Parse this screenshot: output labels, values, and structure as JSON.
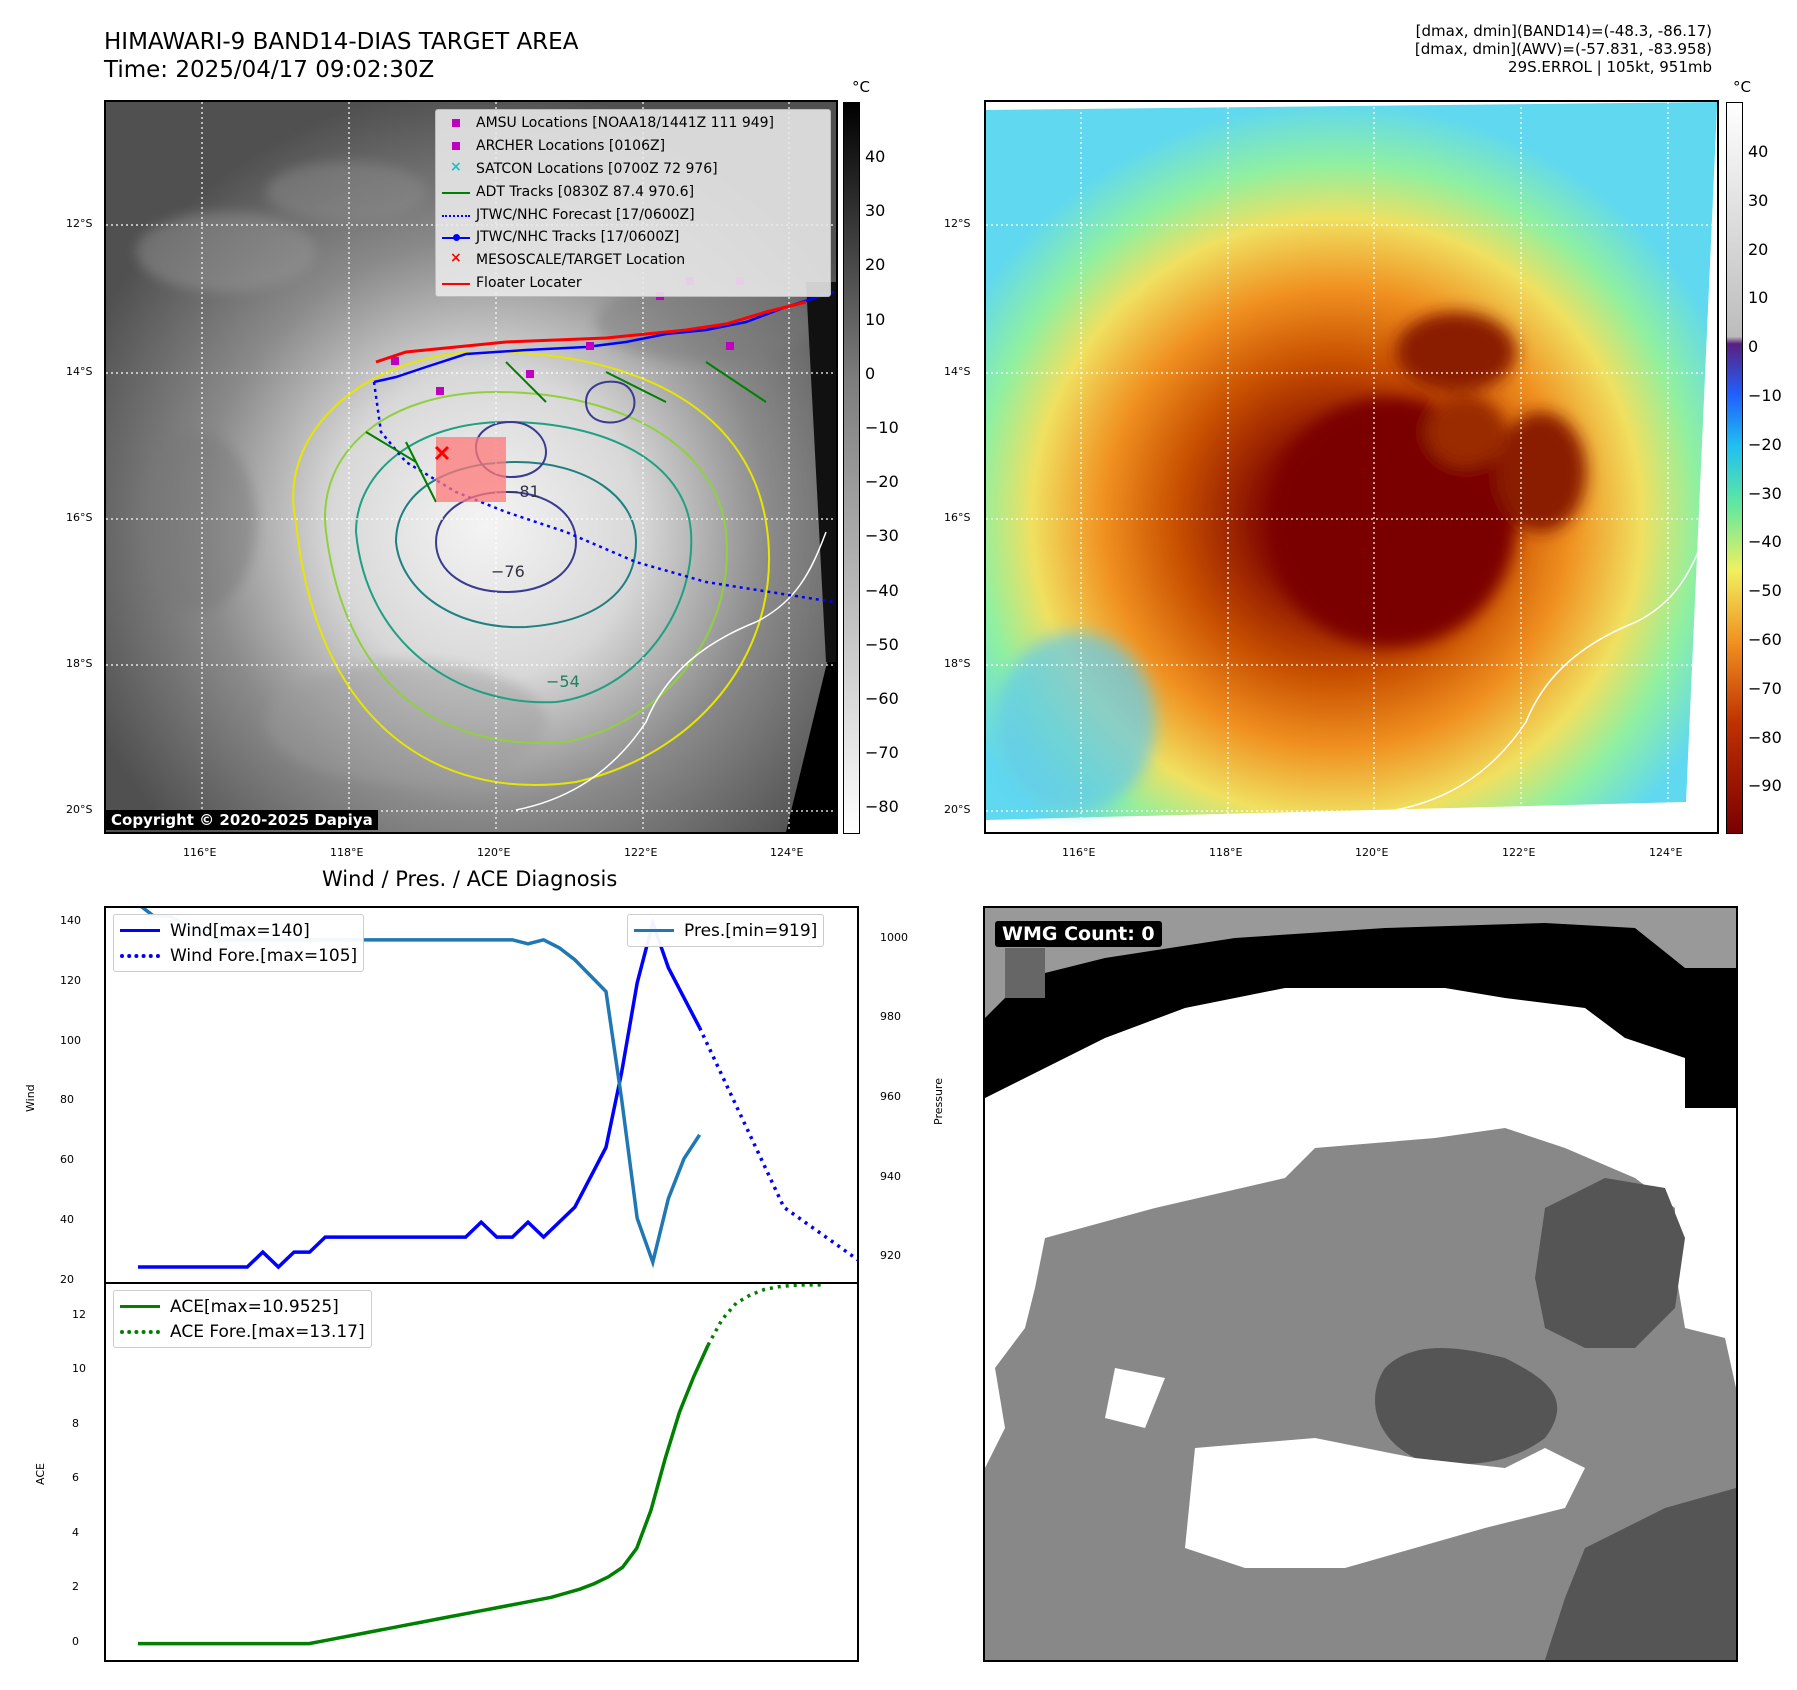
{
  "header": {
    "title_line1": "HIMAWARI-9 BAND14-DIAS TARGET AREA",
    "title_line2": "Time: 2025/04/17 09:02:30Z",
    "info_line1": "[dmax, dmin](BAND14)=(-48.3, -86.17)",
    "info_line2": "[dmax, dmin](AWV)=(-57.831, -83.958)",
    "info_line3": "29S.ERROL | 105kt, 951mb"
  },
  "map": {
    "lat_labels": [
      "12°S",
      "14°S",
      "16°S",
      "18°S",
      "20°S"
    ],
    "lon_labels": [
      "116°E",
      "118°E",
      "120°E",
      "122°E",
      "124°E"
    ],
    "contour_labels": [
      "−76",
      "−54",
      "−81"
    ],
    "copyright": "Copyright © 2020-2025 Dapiya",
    "colorbar_unit": "°C",
    "gray_ticks": [
      "40",
      "30",
      "20",
      "10",
      "0",
      "−10",
      "−20",
      "−30",
      "−40",
      "−50",
      "−60",
      "−70",
      "−80"
    ],
    "color_ticks": [
      "40",
      "30",
      "20",
      "10",
      "0",
      "−10",
      "−20",
      "−30",
      "−40",
      "−50",
      "−60",
      "−70",
      "−80",
      "−90"
    ]
  },
  "legend": {
    "items": [
      {
        "label": "AMSU Locations [NOAA18/1441Z 111 949]",
        "color": "#c000c0",
        "symbol": "square"
      },
      {
        "label": "ARCHER Locations [0106Z]",
        "color": "#c000c0",
        "symbol": "square"
      },
      {
        "label": "SATCON Locations [0700Z 72 976]",
        "color": "#20c0c0",
        "symbol": "x"
      },
      {
        "label": "ADT Tracks [0830Z 87.4 970.6]",
        "color": "#008000",
        "symbol": "line"
      },
      {
        "label": "JTWC/NHC Forecast [17/0600Z]",
        "color": "#0000ff",
        "symbol": "dotted"
      },
      {
        "label": "JTWC/NHC Tracks [17/0600Z]",
        "color": "#0000ff",
        "symbol": "line-dot"
      },
      {
        "label": "MESOSCALE/TARGET Location",
        "color": "#ff0000",
        "symbol": "x"
      },
      {
        "label": "Floater Locater",
        "color": "#ff0000",
        "symbol": "line"
      }
    ]
  },
  "diagnosis": {
    "title": "Wind / Pres. / ACE Diagnosis",
    "wind_ylabel": "Wind",
    "pres_ylabel": "Pressure",
    "ace_ylabel": "ACE",
    "wind_legend": "Wind[max=140]",
    "wind_fore_legend": "Wind Fore.[max=105]",
    "pres_legend": "Pres.[min=919]",
    "ace_legend": "ACE[max=10.9525]",
    "ace_fore_legend": "ACE Fore.[max=13.17]"
  },
  "wmg": {
    "label": "WMG Count: 0"
  },
  "chart_data": [
    {
      "type": "line",
      "name": "Wind / Pres. / ACE Diagnosis (upper)",
      "ylim_left": [
        20,
        145
      ],
      "ylim_right": [
        914,
        1008
      ],
      "yticks_left": [
        "20",
        "40",
        "60",
        "80",
        "100",
        "120",
        "140"
      ],
      "yticks_right": [
        "920",
        "940",
        "960",
        "980",
        "1000"
      ],
      "series": [
        {
          "name": "Wind[max=140]",
          "axis": "left",
          "color": "#0000ff",
          "style": "solid",
          "values": [
            25,
            25,
            25,
            25,
            25,
            25,
            25,
            25,
            30,
            25,
            30,
            30,
            35,
            35,
            35,
            35,
            35,
            35,
            35,
            35,
            35,
            35,
            40,
            35,
            35,
            40,
            35,
            40,
            45,
            55,
            65,
            90,
            120,
            140,
            125,
            115,
            105
          ]
        },
        {
          "name": "Wind Fore.[max=105]",
          "axis": "left",
          "color": "#0000ff",
          "style": "dotted",
          "values": [
            105,
            90,
            75,
            60,
            45,
            40,
            35,
            30,
            25,
            20
          ]
        },
        {
          "name": "Pres.[min=919]",
          "axis": "right",
          "color": "#1f77b4",
          "style": "solid",
          "values": [
            1009,
            1006,
            1006,
            1004,
            1002,
            1000,
            1000,
            1000,
            1000,
            1000,
            1000,
            1000,
            1000,
            1000,
            1000,
            1000,
            1000,
            1000,
            1000,
            1000,
            1000,
            1000,
            1000,
            1000,
            1000,
            999,
            1000,
            998,
            995,
            991,
            987,
            960,
            930,
            919,
            935,
            945,
            951
          ]
        }
      ]
    },
    {
      "type": "line",
      "name": "ACE (lower)",
      "ylim": [
        -0.6,
        13.2
      ],
      "yticks": [
        "0",
        "2",
        "4",
        "6",
        "8",
        "10",
        "12"
      ],
      "series": [
        {
          "name": "ACE[max=10.9525]",
          "color": "#008000",
          "style": "solid",
          "values": [
            0,
            0,
            0,
            0,
            0,
            0,
            0,
            0,
            0,
            0,
            0,
            0,
            0,
            0.1,
            0.2,
            0.3,
            0.4,
            0.5,
            0.6,
            0.7,
            0.8,
            0.9,
            1.0,
            1.1,
            1.2,
            1.3,
            1.4,
            1.5,
            1.6,
            1.7,
            1.85,
            2.0,
            2.2,
            2.45,
            2.8,
            3.5,
            4.9,
            6.8,
            8.5,
            9.8,
            10.9525
          ]
        },
        {
          "name": "ACE Fore.[max=13.17]",
          "color": "#008000",
          "style": "dotted",
          "values": [
            10.9525,
            11.9,
            12.5,
            12.8,
            13.0,
            13.1,
            13.15,
            13.17,
            13.17
          ]
        }
      ]
    }
  ]
}
